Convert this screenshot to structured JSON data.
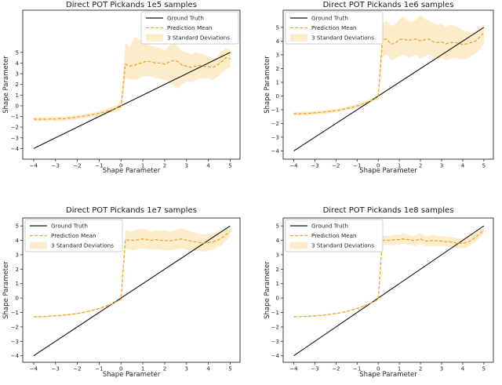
{
  "figure": {
    "background": "#ffffff"
  },
  "colors": {
    "ground_truth": "#111111",
    "prediction_mean": "#efa32b",
    "band_fill": "#fcecca",
    "legend_border": "#cccccc",
    "legend_background": "#ffffff",
    "spine": "#2a2a2a",
    "text": "#262626"
  },
  "chart_data": [
    {
      "type": "line",
      "title": "Direct POT Pickands 1e5 samples",
      "xlabel": "Shape Parameter",
      "ylabel": "Shape Parameter",
      "xlim": [
        -4.5,
        5.45
      ],
      "ylim": [
        -5.0,
        8.95
      ],
      "xticks": [
        -4,
        -3,
        -2,
        -1,
        0,
        1,
        2,
        3,
        4,
        5
      ],
      "yticks": [
        -4,
        -3,
        -2,
        -1,
        0,
        1,
        2,
        3,
        4,
        5
      ],
      "grid": false,
      "legend_position": "upper right",
      "x": [
        -4,
        -3.8,
        -3.6,
        -3.4,
        -3.2,
        -3,
        -2.8,
        -2.6,
        -2.4,
        -2.2,
        -2,
        -1.8,
        -1.6,
        -1.4,
        -1.2,
        -1,
        -0.8,
        -0.6,
        -0.4,
        -0.2,
        0,
        0.2,
        0.4,
        0.6,
        0.8,
        1,
        1.2,
        1.4,
        1.6,
        1.8,
        2,
        2.2,
        2.4,
        2.6,
        2.8,
        3,
        3.2,
        3.4,
        3.6,
        3.8,
        4,
        4.2,
        4.4,
        4.6,
        4.8,
        5
      ],
      "series": [
        {
          "name": "Ground Truth",
          "style": "solid",
          "x": [
            -4,
            5
          ],
          "y": [
            -4,
            5
          ]
        },
        {
          "name": "Prediction Mean",
          "style": "dashed",
          "y": [
            -1.25,
            -1.28,
            -1.24,
            -1.27,
            -1.23,
            -1.25,
            -1.2,
            -1.22,
            -1.16,
            -1.12,
            -1.05,
            -1,
            -0.94,
            -0.87,
            -0.79,
            -0.7,
            -0.6,
            -0.48,
            -0.36,
            -0.22,
            -0.08,
            3.9,
            3.7,
            3.78,
            3.95,
            4.05,
            4.2,
            4.1,
            4,
            4,
            3.9,
            4.1,
            4.25,
            4.15,
            3.8,
            3.7,
            3.6,
            3.7,
            3.78,
            3.7,
            3.65,
            3.6,
            3.8,
            4.1,
            4.5,
            4.4
          ]
        },
        {
          "name": "3 Standard Deviations",
          "style": "band",
          "upper": [
            -1.05,
            -1.08,
            -1.04,
            -1.07,
            -1.03,
            -1.05,
            -1,
            -1.02,
            -0.96,
            -0.92,
            -0.85,
            -0.8,
            -0.74,
            -0.67,
            -0.59,
            -0.5,
            -0.4,
            -0.26,
            -0.12,
            0.05,
            0.35,
            5.9,
            5.5,
            6.4,
            6.3,
            5.9,
            5.8,
            5.6,
            5.5,
            5.4,
            5.2,
            5.6,
            5.9,
            5.6,
            5.1,
            5,
            4.8,
            5,
            4.9,
            4.8,
            4.6,
            4.4,
            4.6,
            5,
            5.4,
            5.2
          ],
          "lower": [
            -1.45,
            -1.48,
            -1.44,
            -1.47,
            -1.43,
            -1.45,
            -1.4,
            -1.42,
            -1.36,
            -1.32,
            -1.25,
            -1.2,
            -1.14,
            -1.07,
            -0.99,
            -0.9,
            -0.8,
            -0.7,
            -0.6,
            -0.5,
            -0.45,
            2.6,
            2.5,
            2.4,
            2.5,
            2.7,
            2.8,
            2.7,
            2.6,
            2.5,
            2.4,
            2.3,
            1.9,
            1.6,
            2,
            2.3,
            2.2,
            2.4,
            2.6,
            2.5,
            2.6,
            2.4,
            2.7,
            3,
            3.4,
            3.6
          ]
        }
      ]
    },
    {
      "type": "line",
      "title": "Direct POT Pickands 1e6 samples",
      "xlabel": "Shape Parameter",
      "ylabel": "Shape Parameter",
      "xlim": [
        -4.5,
        5.45
      ],
      "ylim": [
        -4.6,
        6.25
      ],
      "xticks": [
        -4,
        -3,
        -2,
        -1,
        0,
        1,
        2,
        3,
        4,
        5
      ],
      "yticks": [
        -4,
        -3,
        -2,
        -1,
        0,
        1,
        2,
        3,
        4,
        5
      ],
      "grid": false,
      "legend_position": "upper left",
      "x": [
        -4,
        -3.8,
        -3.6,
        -3.4,
        -3.2,
        -3,
        -2.8,
        -2.6,
        -2.4,
        -2.2,
        -2,
        -1.8,
        -1.6,
        -1.4,
        -1.2,
        -1,
        -0.8,
        -0.6,
        -0.4,
        -0.2,
        0,
        0.2,
        0.4,
        0.6,
        0.8,
        1,
        1.2,
        1.4,
        1.6,
        1.8,
        2,
        2.2,
        2.4,
        2.6,
        2.8,
        3,
        3.2,
        3.4,
        3.6,
        3.8,
        4,
        4.2,
        4.4,
        4.6,
        4.8,
        5
      ],
      "series": [
        {
          "name": "Ground Truth",
          "style": "solid",
          "x": [
            -4,
            5
          ],
          "y": [
            -4,
            5
          ]
        },
        {
          "name": "Prediction Mean",
          "style": "dashed",
          "y": [
            -1.28,
            -1.3,
            -1.27,
            -1.28,
            -1.25,
            -1.22,
            -1.2,
            -1.17,
            -1.14,
            -1.1,
            -1.06,
            -1.01,
            -0.95,
            -0.88,
            -0.8,
            -0.71,
            -0.61,
            -0.5,
            -0.38,
            -0.24,
            -0.08,
            4.1,
            4.15,
            3.78,
            3.85,
            4.1,
            4.15,
            4.05,
            4.1,
            4.15,
            4,
            4.1,
            4.15,
            3.95,
            3.9,
            3.95,
            3.8,
            3.9,
            3.9,
            3.85,
            3.75,
            3.8,
            3.9,
            4,
            4.3,
            4.6
          ]
        },
        {
          "name": "3 Standard Deviations",
          "style": "band",
          "upper": [
            -1.15,
            -1.17,
            -1.14,
            -1.15,
            -1.12,
            -1.09,
            -1.07,
            -1.04,
            -1.01,
            -0.97,
            -0.93,
            -0.88,
            -0.82,
            -0.75,
            -0.67,
            -0.58,
            -0.48,
            -0.37,
            -0.25,
            -0.1,
            0.1,
            5.3,
            5.5,
            5.1,
            5.2,
            5.6,
            5.8,
            5.5,
            5.4,
            5.6,
            5.9,
            5.6,
            5.5,
            5.3,
            5.2,
            5.3,
            5,
            5.2,
            5.1,
            5,
            4.8,
            4.7,
            4.6,
            4.8,
            5,
            5.2
          ],
          "lower": [
            -1.41,
            -1.43,
            -1.4,
            -1.41,
            -1.38,
            -1.35,
            -1.33,
            -1.3,
            -1.27,
            -1.23,
            -1.19,
            -1.14,
            -1.08,
            -1.01,
            -0.93,
            -0.84,
            -0.74,
            -0.63,
            -0.51,
            -0.38,
            -0.26,
            2.9,
            3,
            2.6,
            2.7,
            2.9,
            3,
            2.8,
            2.9,
            3,
            2.7,
            2.9,
            3,
            2.8,
            2.7,
            2.75,
            2.6,
            2.7,
            2.8,
            2.7,
            2.65,
            2.7,
            2.9,
            3.1,
            3.4,
            3.8
          ]
        }
      ]
    },
    {
      "type": "line",
      "title": "Direct POT Pickands 1e7 samples",
      "xlabel": "Shape Parameter",
      "ylabel": "Shape Parameter",
      "xlim": [
        -4.5,
        5.45
      ],
      "ylim": [
        -4.45,
        5.55
      ],
      "xticks": [
        -4,
        -3,
        -2,
        -1,
        0,
        1,
        2,
        3,
        4,
        5
      ],
      "yticks": [
        -4,
        -3,
        -2,
        -1,
        0,
        1,
        2,
        3,
        4,
        5
      ],
      "grid": false,
      "legend_position": "upper left",
      "x": [
        -4,
        -3.8,
        -3.6,
        -3.4,
        -3.2,
        -3,
        -2.8,
        -2.6,
        -2.4,
        -2.2,
        -2,
        -1.8,
        -1.6,
        -1.4,
        -1.2,
        -1,
        -0.8,
        -0.6,
        -0.4,
        -0.2,
        0,
        0.2,
        0.4,
        0.6,
        0.8,
        1,
        1.2,
        1.4,
        1.6,
        1.8,
        2,
        2.2,
        2.4,
        2.6,
        2.8,
        3,
        3.2,
        3.4,
        3.6,
        3.8,
        4,
        4.2,
        4.4,
        4.6,
        4.8,
        5
      ],
      "series": [
        {
          "name": "Ground Truth",
          "style": "solid",
          "x": [
            -4,
            5
          ],
          "y": [
            -4,
            5
          ]
        },
        {
          "name": "Prediction Mean",
          "style": "dashed",
          "y": [
            -1.3,
            -1.29,
            -1.28,
            -1.27,
            -1.25,
            -1.23,
            -1.21,
            -1.18,
            -1.15,
            -1.11,
            -1.07,
            -1.02,
            -0.96,
            -0.89,
            -0.81,
            -0.72,
            -0.62,
            -0.51,
            -0.39,
            -0.25,
            -0.08,
            4.05,
            4,
            4,
            4.05,
            4.1,
            4.05,
            4,
            4.05,
            4,
            4,
            3.95,
            4,
            4.05,
            4.1,
            4,
            3.95,
            3.9,
            3.85,
            3.8,
            3.85,
            3.9,
            4,
            4.15,
            4.4,
            4.6
          ]
        },
        {
          "name": "3 Standard Deviations",
          "style": "band",
          "upper": [
            -1.25,
            -1.24,
            -1.23,
            -1.22,
            -1.2,
            -1.18,
            -1.16,
            -1.13,
            -1.1,
            -1.06,
            -1.02,
            -0.97,
            -0.91,
            -0.84,
            -0.76,
            -0.67,
            -0.57,
            -0.46,
            -0.34,
            -0.2,
            -0.03,
            4.7,
            4.6,
            4.7,
            4.75,
            4.8,
            4.7,
            4.6,
            4.7,
            4.65,
            4.7,
            4.6,
            4.65,
            4.75,
            4.85,
            4.7,
            4.6,
            4.5,
            4.45,
            4.4,
            4.45,
            4.5,
            4.6,
            4.7,
            4.85,
            4.95
          ],
          "lower": [
            -1.35,
            -1.34,
            -1.33,
            -1.32,
            -1.3,
            -1.28,
            -1.26,
            -1.23,
            -1.2,
            -1.16,
            -1.12,
            -1.07,
            -1.01,
            -0.94,
            -0.86,
            -0.77,
            -0.67,
            -0.56,
            -0.44,
            -0.3,
            -0.13,
            3.4,
            3.35,
            3.3,
            3.4,
            3.45,
            3.4,
            3.35,
            3.4,
            3.35,
            3.3,
            3.3,
            3.35,
            3.4,
            3.45,
            3.35,
            3.3,
            3.25,
            3.25,
            3.2,
            3.3,
            3.35,
            3.5,
            3.65,
            3.95,
            4.25
          ]
        }
      ]
    },
    {
      "type": "line",
      "title": "Direct POT Pickands 1e8 samples",
      "xlabel": "Shape Parameter",
      "ylabel": "Shape Parameter",
      "xlim": [
        -4.5,
        5.45
      ],
      "ylim": [
        -4.45,
        5.55
      ],
      "xticks": [
        -4,
        -3,
        -2,
        -1,
        0,
        1,
        2,
        3,
        4,
        5
      ],
      "yticks": [
        -4,
        -3,
        -2,
        -1,
        0,
        1,
        2,
        3,
        4,
        5
      ],
      "grid": false,
      "legend_position": "upper left",
      "x": [
        -4,
        -3.8,
        -3.6,
        -3.4,
        -3.2,
        -3,
        -2.8,
        -2.6,
        -2.4,
        -2.2,
        -2,
        -1.8,
        -1.6,
        -1.4,
        -1.2,
        -1,
        -0.8,
        -0.6,
        -0.4,
        -0.2,
        0,
        0.2,
        0.4,
        0.6,
        0.8,
        1,
        1.2,
        1.4,
        1.6,
        1.8,
        2,
        2.2,
        2.4,
        2.6,
        2.8,
        3,
        3.2,
        3.4,
        3.6,
        3.8,
        4,
        4.2,
        4.4,
        4.6,
        4.8,
        5
      ],
      "series": [
        {
          "name": "Ground Truth",
          "style": "solid",
          "x": [
            -4,
            5
          ],
          "y": [
            -4,
            5
          ]
        },
        {
          "name": "Prediction Mean",
          "style": "dashed",
          "y": [
            -1.3,
            -1.29,
            -1.28,
            -1.27,
            -1.25,
            -1.23,
            -1.21,
            -1.18,
            -1.15,
            -1.11,
            -1.07,
            -1.02,
            -0.96,
            -0.89,
            -0.81,
            -0.72,
            -0.62,
            -0.51,
            -0.39,
            -0.25,
            -0.08,
            4,
            4,
            4,
            4.05,
            4.05,
            4.1,
            4.05,
            4,
            4,
            4.1,
            3.95,
            3.95,
            4,
            3.95,
            3.95,
            3.9,
            3.9,
            3.85,
            3.8,
            3.8,
            3.85,
            4,
            4.2,
            4.45,
            4.7
          ]
        },
        {
          "name": "3 Standard Deviations",
          "style": "band",
          "upper": [
            -1.26,
            -1.25,
            -1.24,
            -1.23,
            -1.21,
            -1.19,
            -1.17,
            -1.14,
            -1.11,
            -1.07,
            -1.03,
            -0.98,
            -0.92,
            -0.85,
            -0.77,
            -0.68,
            -0.58,
            -0.47,
            -0.35,
            -0.21,
            -0.02,
            4.35,
            4.3,
            4.35,
            4.4,
            4.4,
            4.5,
            4.4,
            4.3,
            4.35,
            4.5,
            4.3,
            4.3,
            4.4,
            4.3,
            4.3,
            4.25,
            4.25,
            4.2,
            4.15,
            4.15,
            4.2,
            4.35,
            4.5,
            4.7,
            4.9
          ],
          "lower": [
            -1.34,
            -1.33,
            -1.32,
            -1.31,
            -1.29,
            -1.27,
            -1.25,
            -1.22,
            -1.19,
            -1.15,
            -1.11,
            -1.06,
            -1,
            -0.93,
            -0.85,
            -0.76,
            -0.66,
            -0.55,
            -0.43,
            -0.29,
            -0.14,
            3.65,
            3.7,
            3.65,
            3.7,
            3.7,
            3.75,
            3.7,
            3.65,
            3.65,
            3.75,
            3.6,
            3.6,
            3.65,
            3.6,
            3.6,
            3.55,
            3.55,
            3.5,
            3.45,
            3.45,
            3.5,
            3.7,
            3.9,
            4.2,
            4.5
          ]
        }
      ]
    }
  ]
}
